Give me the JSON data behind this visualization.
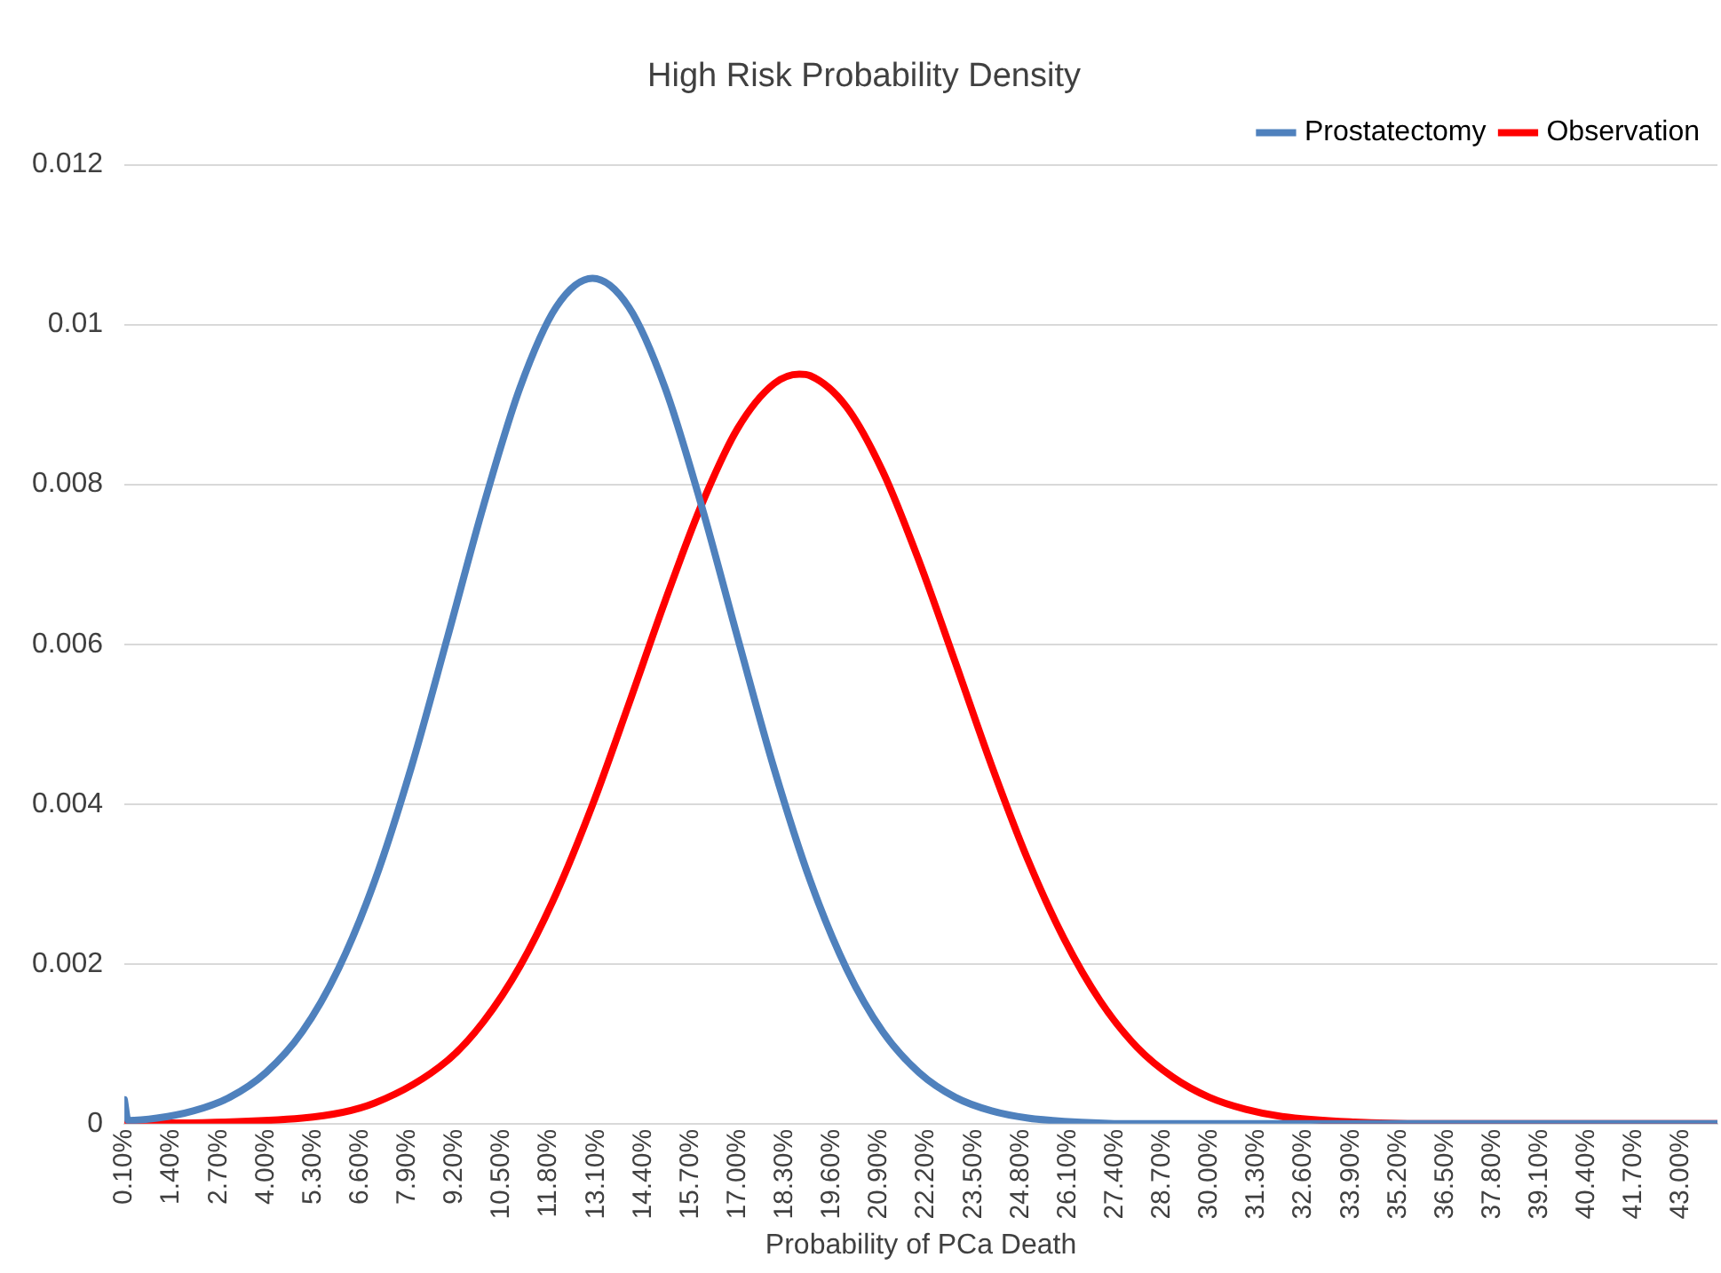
{
  "chart_data": {
    "type": "line",
    "title": "High Risk Probability Density",
    "xlabel": "Probability of PCa Death",
    "xlim": [
      0.1,
      44.0
    ],
    "xticks": [
      {
        "value": 0.1,
        "label": "0.10%"
      },
      {
        "value": 1.4,
        "label": "1.40%"
      },
      {
        "value": 2.7,
        "label": "2.70%"
      },
      {
        "value": 4.0,
        "label": "4.00%"
      },
      {
        "value": 5.3,
        "label": "5.30%"
      },
      {
        "value": 6.6,
        "label": "6.60%"
      },
      {
        "value": 7.9,
        "label": "7.90%"
      },
      {
        "value": 9.2,
        "label": "9.20%"
      },
      {
        "value": 10.5,
        "label": "10.50%"
      },
      {
        "value": 11.8,
        "label": "11.80%"
      },
      {
        "value": 13.1,
        "label": "13.10%"
      },
      {
        "value": 14.4,
        "label": "14.40%"
      },
      {
        "value": 15.7,
        "label": "15.70%"
      },
      {
        "value": 17.0,
        "label": "17.00%"
      },
      {
        "value": 18.3,
        "label": "18.30%"
      },
      {
        "value": 19.6,
        "label": "19.60%"
      },
      {
        "value": 20.9,
        "label": "20.90%"
      },
      {
        "value": 22.2,
        "label": "22.20%"
      },
      {
        "value": 23.5,
        "label": "23.50%"
      },
      {
        "value": 24.8,
        "label": "24.80%"
      },
      {
        "value": 26.1,
        "label": "26.10%"
      },
      {
        "value": 27.4,
        "label": "27.40%"
      },
      {
        "value": 28.7,
        "label": "28.70%"
      },
      {
        "value": 30.0,
        "label": "30.00%"
      },
      {
        "value": 31.3,
        "label": "31.30%"
      },
      {
        "value": 32.6,
        "label": "32.60%"
      },
      {
        "value": 33.9,
        "label": "33.90%"
      },
      {
        "value": 35.2,
        "label": "35.20%"
      },
      {
        "value": 36.5,
        "label": "36.50%"
      },
      {
        "value": 37.8,
        "label": "37.80%"
      },
      {
        "value": 39.1,
        "label": "39.10%"
      },
      {
        "value": 40.4,
        "label": "40.40%"
      },
      {
        "value": 41.7,
        "label": "41.70%"
      },
      {
        "value": 43.0,
        "label": "43.00%"
      }
    ],
    "ylim": [
      0,
      0.012
    ],
    "yticks": [
      0,
      0.002,
      0.004,
      0.006,
      0.008,
      0.01,
      0.012
    ],
    "grid": "y",
    "legend": "top right",
    "marker": "none",
    "line_style": "solid",
    "series": [
      {
        "name": "Prostatectomy",
        "color": "#4f81bd",
        "x": [
          0.1,
          0.2,
          1,
          2,
          3,
          4,
          5,
          6,
          7,
          8,
          9,
          10,
          11,
          12,
          13,
          14,
          15,
          16,
          17,
          18,
          19,
          20,
          21,
          22,
          23,
          24,
          25,
          26,
          28,
          30,
          44
        ],
        "values": [
          0.0003,
          4e-05,
          7e-05,
          0.00016,
          0.00033,
          0.00064,
          0.00115,
          0.00194,
          0.00304,
          0.00445,
          0.00608,
          0.00774,
          0.00921,
          0.01022,
          0.01058,
          0.01022,
          0.00921,
          0.00774,
          0.00608,
          0.00445,
          0.00304,
          0.00194,
          0.00115,
          0.00064,
          0.00033,
          0.00016,
          7e-05,
          3e-05,
          0,
          0,
          0
        ]
      },
      {
        "name": "Observation",
        "color": "#ff0000",
        "x": [
          0.1,
          5,
          7,
          9,
          10,
          11,
          12,
          13,
          14,
          15,
          16,
          17,
          18,
          18.7,
          19,
          20,
          21,
          22,
          23,
          24,
          25,
          26,
          27,
          28,
          29,
          30,
          31,
          32,
          34,
          36,
          44
        ],
        "values": [
          0,
          7e-05,
          0.00026,
          0.00079,
          0.00128,
          0.00197,
          0.00288,
          0.00399,
          0.00525,
          0.00654,
          0.00774,
          0.0087,
          0.00926,
          0.00938,
          0.00936,
          0.00897,
          0.00816,
          0.00704,
          0.00577,
          0.00448,
          0.0033,
          0.00231,
          0.00153,
          0.00096,
          0.00058,
          0.00033,
          0.00018,
          9e-05,
          2e-05,
          0,
          0
        ]
      }
    ]
  }
}
